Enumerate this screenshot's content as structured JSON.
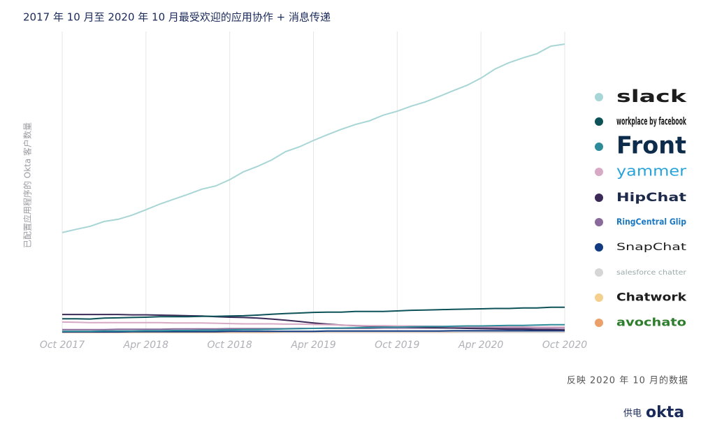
{
  "chart_data": {
    "type": "line",
    "title": "2017 年 10 月至 2020 年 10 月最受欢迎的应用协作 + 消息传递",
    "y_label": "已配置应用程序的 Okta 客户数量",
    "note": "反映 2020 年 10 月的数据",
    "credit": "供电",
    "credit_logo": "okta",
    "x": [
      "Oct 2017",
      null,
      null,
      null,
      null,
      null,
      "Apr 2018",
      null,
      null,
      null,
      null,
      null,
      "Oct 2018",
      null,
      null,
      null,
      null,
      null,
      "Apr 2019",
      null,
      null,
      null,
      null,
      null,
      "Oct 2019",
      null,
      null,
      null,
      null,
      null,
      "Apr 2020",
      null,
      null,
      null,
      null,
      null,
      "Oct 2020"
    ],
    "ylim": [
      0,
      100
    ],
    "grid": true,
    "series": [
      {
        "name": "slack",
        "color": "#a8d5d6",
        "values": [
          33.2,
          34.3,
          35.3,
          36.9,
          37.6,
          39.0,
          40.8,
          42.7,
          44.3,
          45.9,
          47.6,
          48.7,
          50.8,
          53.4,
          55.2,
          57.3,
          60.1,
          61.7,
          63.8,
          65.7,
          67.5,
          69.1,
          70.3,
          72.2,
          73.5,
          75.2,
          76.6,
          78.4,
          80.3,
          82.1,
          84.5,
          87.5,
          89.6,
          91.2,
          92.6,
          95.1,
          95.8
        ]
      },
      {
        "name": "workplace by facebook",
        "color": "#0d5258",
        "values": [
          4.6,
          4.6,
          4.5,
          4.8,
          4.9,
          5.0,
          5.1,
          5.3,
          5.3,
          5.3,
          5.4,
          5.4,
          5.5,
          5.6,
          5.8,
          6.1,
          6.3,
          6.5,
          6.7,
          6.8,
          6.8,
          7.0,
          7.0,
          7.0,
          7.2,
          7.4,
          7.5,
          7.6,
          7.7,
          7.8,
          7.9,
          8.0,
          8.0,
          8.2,
          8.2,
          8.4,
          8.4
        ]
      },
      {
        "name": "Front",
        "color": "#2e8b9a",
        "values": [
          0.4,
          0.4,
          0.4,
          0.5,
          0.5,
          0.5,
          0.6,
          0.6,
          0.7,
          0.7,
          0.8,
          0.8,
          0.9,
          1.0,
          1.0,
          1.1,
          1.2,
          1.3,
          1.4,
          1.5,
          1.5,
          1.6,
          1.7,
          1.8,
          1.8,
          1.9,
          2.0,
          2.0,
          2.1,
          2.2,
          2.2,
          2.3,
          2.4,
          2.4,
          2.5,
          2.6,
          2.6
        ]
      },
      {
        "name": "yammer",
        "color": "#d8a9c4",
        "values": [
          3.5,
          3.4,
          3.3,
          3.3,
          3.3,
          3.3,
          3.3,
          3.3,
          3.2,
          3.2,
          3.2,
          3.1,
          3.0,
          2.9,
          2.9,
          2.9,
          2.8,
          2.8,
          2.7,
          2.6,
          2.5,
          2.4,
          2.3,
          2.3,
          2.2,
          2.2,
          2.1,
          2.1,
          2.0,
          2.0,
          2.0,
          1.9,
          1.9,
          1.9,
          1.8,
          1.8,
          1.8
        ]
      },
      {
        "name": "HipChat",
        "color": "#3b2a58",
        "values": [
          6.0,
          6.0,
          6.0,
          6.0,
          6.0,
          5.9,
          5.9,
          5.8,
          5.7,
          5.6,
          5.5,
          5.3,
          5.1,
          5.0,
          4.8,
          4.5,
          4.1,
          3.7,
          3.2,
          2.8,
          2.5,
          2.3,
          2.1,
          2.0,
          1.9,
          1.8,
          1.7,
          1.6,
          1.5,
          1.4,
          1.3,
          1.2,
          1.1,
          1.1,
          1.0,
          1.0,
          0.9
        ]
      },
      {
        "name": "RingCentral Glip",
        "color": "#8a6a9a",
        "values": [
          1.0,
          1.0,
          1.0,
          1.0,
          1.1,
          1.1,
          1.1,
          1.1,
          1.2,
          1.2,
          1.2,
          1.2,
          1.3,
          1.3,
          1.3,
          1.3,
          1.3,
          1.4,
          1.4,
          1.4,
          1.4,
          1.4,
          1.4,
          1.5,
          1.5,
          1.5,
          1.5,
          1.5,
          1.5,
          1.5,
          1.5,
          1.5,
          1.5,
          1.5,
          1.5,
          1.5,
          1.5
        ]
      },
      {
        "name": "SnapChat",
        "color": "#123a80",
        "values": [
          0.2,
          0.2,
          0.2,
          0.2,
          0.2,
          0.3,
          0.3,
          0.3,
          0.3,
          0.3,
          0.3,
          0.3,
          0.4,
          0.4,
          0.4,
          0.4,
          0.4,
          0.4,
          0.4,
          0.5,
          0.5,
          0.5,
          0.5,
          0.5,
          0.5,
          0.5,
          0.5,
          0.5,
          0.6,
          0.6,
          0.6,
          0.6,
          0.6,
          0.6,
          0.6,
          0.6,
          0.6
        ]
      },
      {
        "name": "salesforce chatter",
        "color": "#d6d6d6",
        "values": [
          0.3,
          0.3,
          0.3,
          0.3,
          0.3,
          0.3,
          0.3,
          0.3,
          0.3,
          0.3,
          0.3,
          0.3,
          0.3,
          0.3,
          0.3,
          0.3,
          0.3,
          0.3,
          0.3,
          0.3,
          0.3,
          0.3,
          0.3,
          0.3,
          0.3,
          0.3,
          0.3,
          0.3,
          0.3,
          0.3,
          0.3,
          0.3,
          0.3,
          0.3,
          0.3,
          0.3,
          0.3
        ]
      },
      {
        "name": "Chatwork",
        "color": "#f5cf8e",
        "values": [
          0.2,
          0.2,
          0.2,
          0.2,
          0.2,
          0.2,
          0.2,
          0.2,
          0.2,
          0.2,
          0.2,
          0.2,
          0.3,
          0.3,
          0.3,
          0.3,
          0.3,
          0.3,
          0.3,
          0.3,
          0.3,
          0.3,
          0.3,
          0.3,
          0.3,
          0.3,
          0.3,
          0.3,
          0.4,
          0.4,
          0.4,
          0.4,
          0.4,
          0.4,
          0.4,
          0.4,
          0.4
        ]
      },
      {
        "name": "avochato",
        "color": "#eba06a",
        "values": [
          0.1,
          0.1,
          0.1,
          0.1,
          0.1,
          0.1,
          0.1,
          0.1,
          0.1,
          0.1,
          0.1,
          0.1,
          0.1,
          0.1,
          0.1,
          0.1,
          0.2,
          0.2,
          0.2,
          0.2,
          0.2,
          0.2,
          0.2,
          0.2,
          0.2,
          0.2,
          0.2,
          0.2,
          0.2,
          0.3,
          0.3,
          0.3,
          0.3,
          0.3,
          0.3,
          0.3,
          0.3
        ]
      }
    ]
  }
}
